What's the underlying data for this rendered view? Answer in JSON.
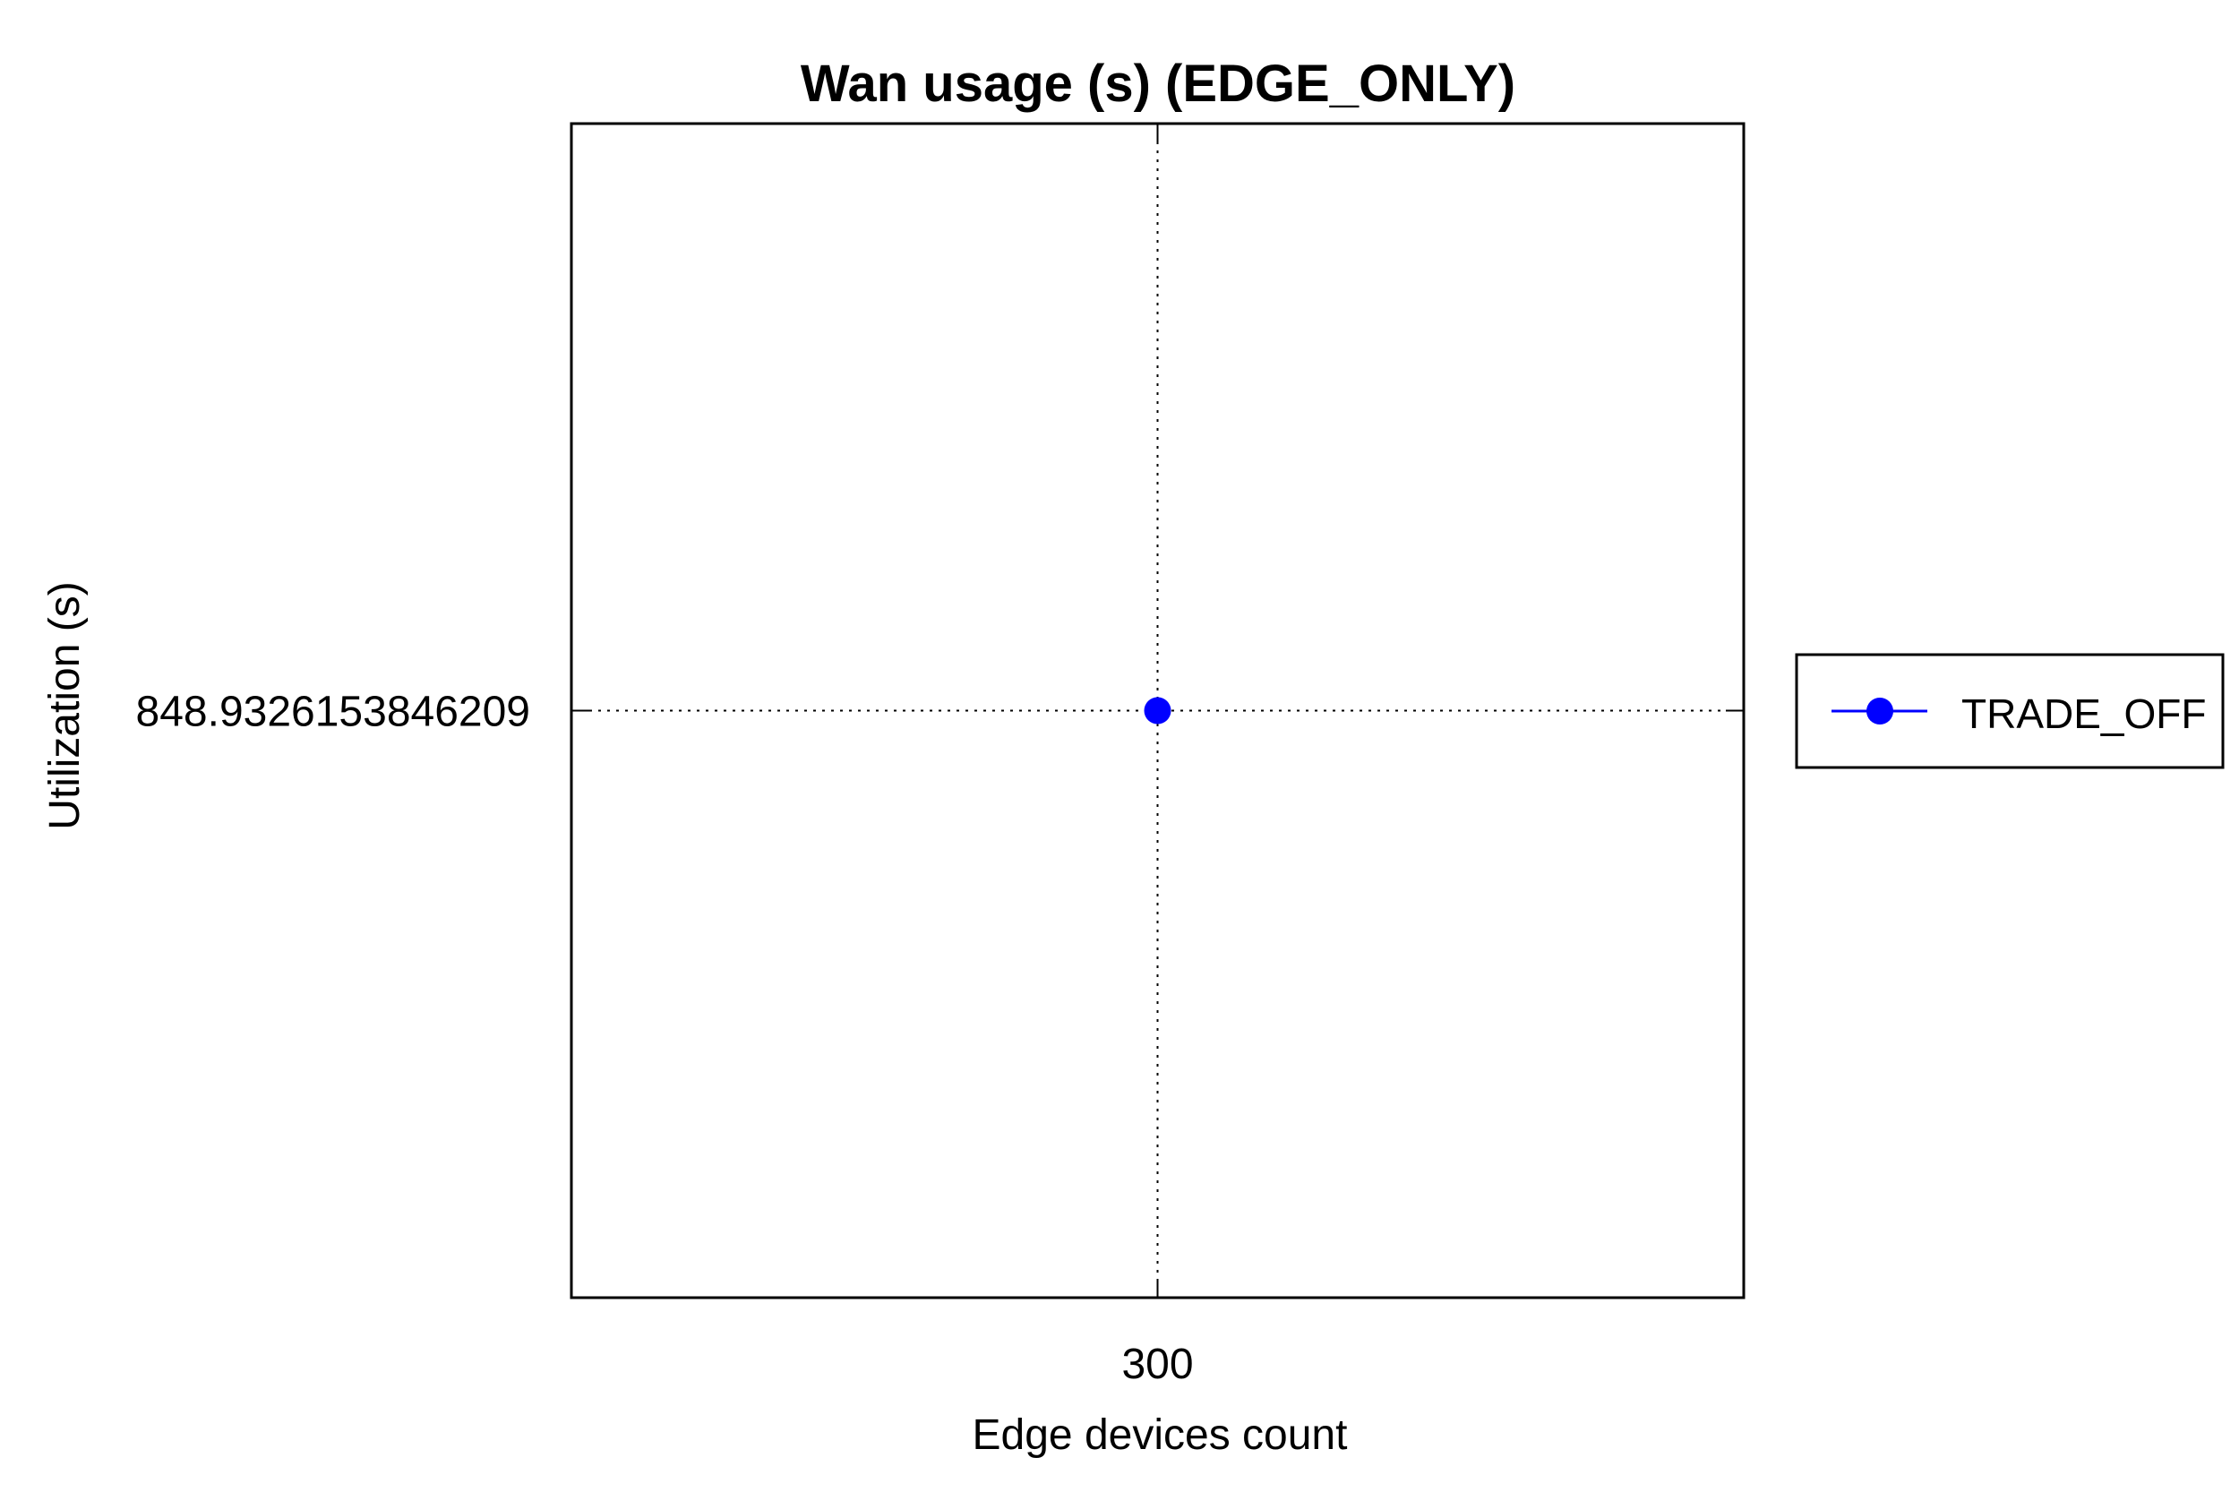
{
  "chart_data": {
    "type": "line",
    "title": "Wan usage (s) (EDGE_ONLY)",
    "xlabel": "Edge devices count",
    "ylabel": "Utilization (s)",
    "x": [
      300
    ],
    "x_tick_labels": [
      "300"
    ],
    "y_tick_labels": [
      "848.9326153846209"
    ],
    "xlim": [
      0,
      600
    ],
    "ylim": [
      847.9326153846209,
      849.9326153846209
    ],
    "grid": true,
    "legend_position": "right",
    "series": [
      {
        "name": "TRADE_OFF",
        "x": [
          300
        ],
        "values": [
          848.9326153846209
        ],
        "color": "#0000ff",
        "marker": "circle"
      }
    ]
  }
}
